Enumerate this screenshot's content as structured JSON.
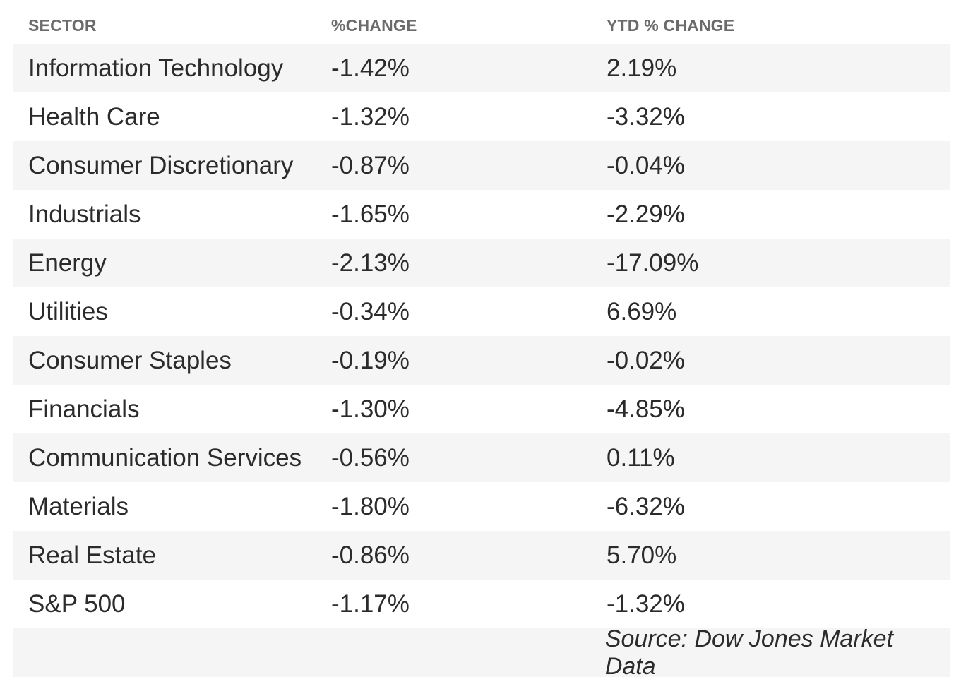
{
  "table": {
    "headers": {
      "sector": "SECTOR",
      "change": "%CHANGE",
      "ytd": "YTD % CHANGE"
    },
    "rows": [
      {
        "sector": "Information Technology",
        "change": "-1.42%",
        "ytd": "2.19%"
      },
      {
        "sector": "Health Care",
        "change": "-1.32%",
        "ytd": "-3.32%"
      },
      {
        "sector": "Consumer Discretionary",
        "change": "-0.87%",
        "ytd": "-0.04%"
      },
      {
        "sector": "Industrials",
        "change": "-1.65%",
        "ytd": "-2.29%"
      },
      {
        "sector": "Energy",
        "change": "-2.13%",
        "ytd": "-17.09%"
      },
      {
        "sector": "Utilities",
        "change": "-0.34%",
        "ytd": "6.69%"
      },
      {
        "sector": "Consumer Staples",
        "change": "-0.19%",
        "ytd": "-0.02%"
      },
      {
        "sector": "Financials",
        "change": "-1.30%",
        "ytd": "-4.85%"
      },
      {
        "sector": "Communication Services",
        "change": "-0.56%",
        "ytd": "0.11%"
      },
      {
        "sector": "Materials",
        "change": "-1.80%",
        "ytd": "-6.32%"
      },
      {
        "sector": "Real Estate",
        "change": "-0.86%",
        "ytd": "5.70%"
      },
      {
        "sector": "S&P 500",
        "change": "-1.17%",
        "ytd": "-1.32%"
      }
    ],
    "source": "Source: Dow Jones Market Data"
  },
  "colors": {
    "header_text": "#6b6b6b",
    "body_text": "#2b2b2b",
    "row_shade": "#f5f5f5"
  }
}
